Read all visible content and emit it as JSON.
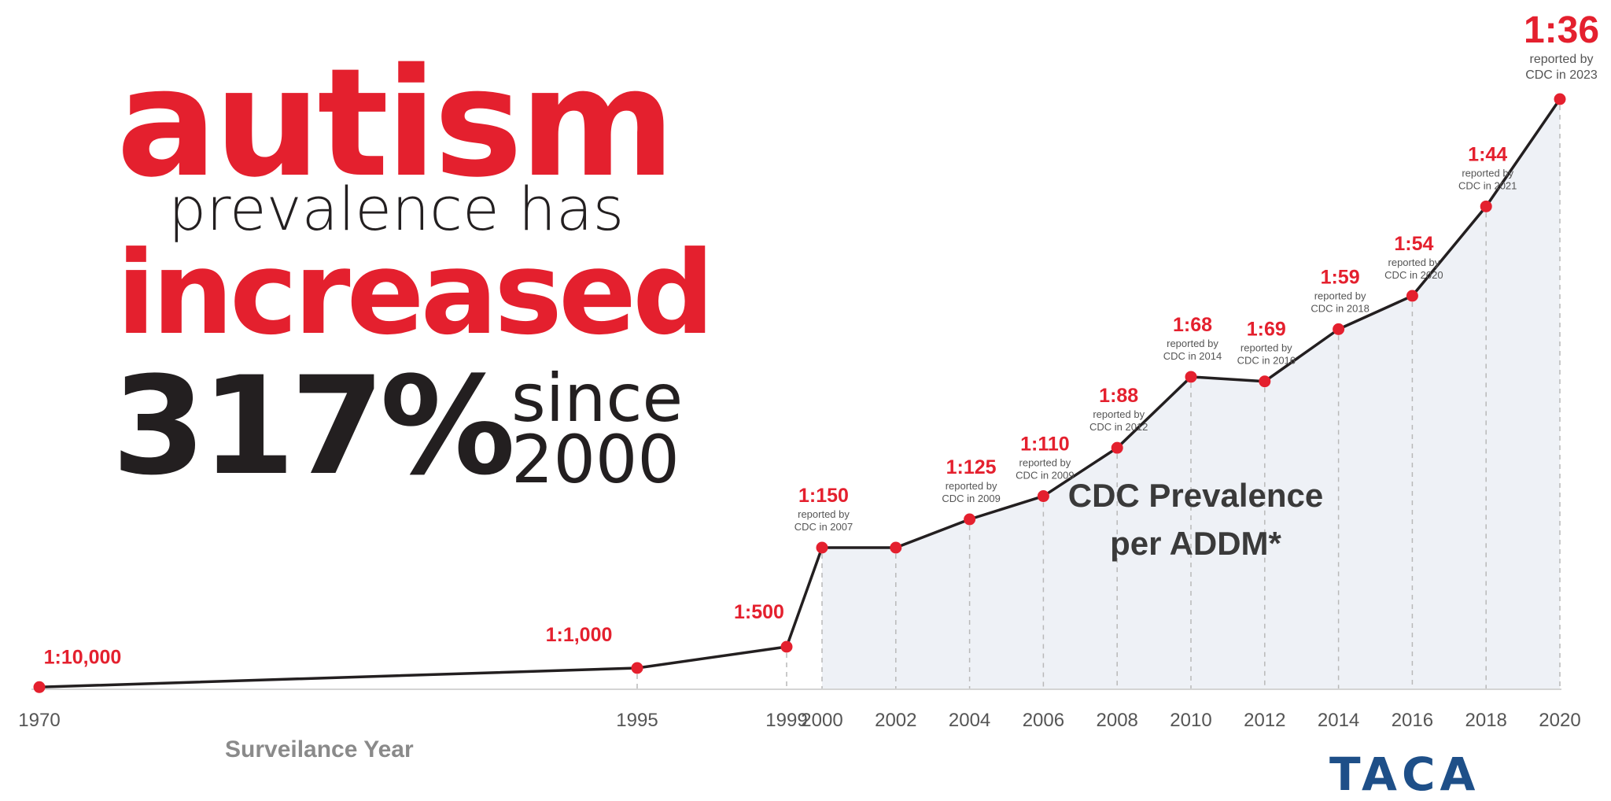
{
  "headline": {
    "line1": "autism",
    "line2": "prevalence has",
    "line3": "increased",
    "percent": "317%",
    "since": "since",
    "year": "2000"
  },
  "chart_data": {
    "type": "line",
    "title": "autism prevalence has increased 317% since 2000",
    "xlabel": "Surveilance Year",
    "area_label_line1": "CDC Prevalence",
    "area_label_line2": "per ADDM*",
    "x_ticks": [
      "1970",
      "1995",
      "1999",
      "2000",
      "2002",
      "2004",
      "2006",
      "2008",
      "2010",
      "2012",
      "2014",
      "2016",
      "2018",
      "2020"
    ],
    "points": [
      {
        "year": 1970,
        "label": "1:10,000",
        "ratio": 10000,
        "note1": "",
        "note2": ""
      },
      {
        "year": 1995,
        "label": "1:1,000",
        "ratio": 1000,
        "note1": "",
        "note2": ""
      },
      {
        "year": 1999,
        "label": "1:500",
        "ratio": 500,
        "note1": "",
        "note2": ""
      },
      {
        "year": 2000,
        "label": "1:150",
        "ratio": 150,
        "note1": "reported by",
        "note2": "CDC in 2007"
      },
      {
        "year": 2002,
        "label": "",
        "ratio": 150,
        "note1": "",
        "note2": ""
      },
      {
        "year": 2004,
        "label": "1:125",
        "ratio": 125,
        "note1": "reported by",
        "note2": "CDC in 2009"
      },
      {
        "year": 2006,
        "label": "1:110",
        "ratio": 110,
        "note1": "reported by",
        "note2": "CDC in 2009"
      },
      {
        "year": 2008,
        "label": "1:88",
        "ratio": 88,
        "note1": "reported by",
        "note2": "CDC in 2012"
      },
      {
        "year": 2010,
        "label": "1:68",
        "ratio": 68,
        "note1": "reported by",
        "note2": "CDC in 2014"
      },
      {
        "year": 2012,
        "label": "1:69",
        "ratio": 69,
        "note1": "reported by",
        "note2": "CDC in 2016"
      },
      {
        "year": 2014,
        "label": "1:59",
        "ratio": 59,
        "note1": "reported by",
        "note2": "CDC in 2018"
      },
      {
        "year": 2016,
        "label": "1:54",
        "ratio": 54,
        "note1": "reported by",
        "note2": "CDC in 2020"
      },
      {
        "year": 2018,
        "label": "1:44",
        "ratio": 44,
        "note1": "reported by",
        "note2": "CDC in 2021"
      },
      {
        "year": 2020,
        "label": "1:36",
        "ratio": 36,
        "note1": "reported by",
        "note2": "CDC in 2023"
      }
    ],
    "shaded_from_year": 2000,
    "grid": false
  },
  "colors": {
    "accent": "#e4202e",
    "text_dark": "#231f20",
    "line": "#231f20",
    "area_fill": "#eef1f6",
    "axis_text": "#555555",
    "note_text": "#555555",
    "logo": "#1e4f88"
  },
  "logo": {
    "text": "TACA"
  }
}
